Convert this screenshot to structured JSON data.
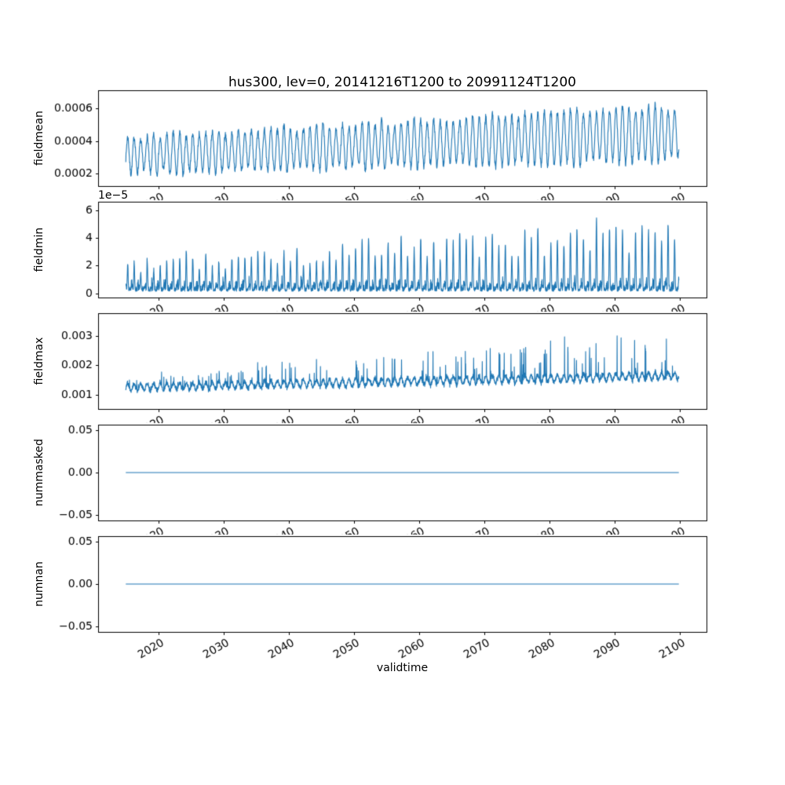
{
  "figure": {
    "title": "hus300, lev=0, 20141216T1200 to 20991124T1200",
    "xlabel": "validtime",
    "line_color": "#1f77b4",
    "axis_color": "#000000",
    "background_color": "#ffffff",
    "x_range": [
      2014.96,
      2099.9
    ],
    "xlim": [
      2010.71,
      2104.15
    ],
    "xticks": [
      {
        "v": 2020,
        "label": "2020"
      },
      {
        "v": 2030,
        "label": "2030"
      },
      {
        "v": 2040,
        "label": "2040"
      },
      {
        "v": 2050,
        "label": "2050"
      },
      {
        "v": 2060,
        "label": "2060"
      },
      {
        "v": 2070,
        "label": "2070"
      },
      {
        "v": 2080,
        "label": "2080"
      },
      {
        "v": 2090,
        "label": "2090"
      },
      {
        "v": 2100,
        "label": "2100"
      }
    ],
    "xtick_rotation_deg": 30
  },
  "chart_data": [
    {
      "type": "line",
      "ylabel": "fieldmean",
      "ylim": [
        0.000125,
        0.00071
      ],
      "yticks": [
        {
          "v": 0.0002,
          "label": "0.0002"
        },
        {
          "v": 0.0004,
          "label": "0.0004"
        },
        {
          "v": 0.0006,
          "label": "0.0006"
        }
      ],
      "signal": {
        "kind": "seasonal",
        "points": 2300,
        "low_start": 0.00019,
        "low_end": 0.00026,
        "high_start": 0.00043,
        "high_end": 0.00064,
        "noise": 2e-05,
        "seed": 7
      }
    },
    {
      "type": "line",
      "ylabel": "fieldmin",
      "offset_text": "1e−5",
      "ylim": [
        -3e-06,
        6.6e-05
      ],
      "yticks": [
        {
          "v": 0,
          "label": "0"
        },
        {
          "v": 2e-05,
          "label": "2"
        },
        {
          "v": 4e-05,
          "label": "4"
        },
        {
          "v": 6e-05,
          "label": "6"
        }
      ],
      "signal": {
        "kind": "spikes",
        "points": 3200,
        "base": 1.5e-06,
        "mid": 8e-06,
        "peak_start": 2.2e-05,
        "peak_end": 5e-05,
        "noise": 5e-06,
        "exponent": 6,
        "seed": 11
      }
    },
    {
      "type": "line",
      "ylabel": "fieldmax",
      "ylim": [
        0.00052,
        0.00377
      ],
      "yticks": [
        {
          "v": 0.001,
          "label": "0.001"
        },
        {
          "v": 0.002,
          "label": "0.002"
        },
        {
          "v": 0.003,
          "label": "0.003"
        }
      ],
      "signal": {
        "kind": "noisy-spikes",
        "points": 3200,
        "base_start": 0.00125,
        "base_end": 0.00165,
        "noise": 0.00013,
        "season": 0.00012,
        "spike_start": 0.0004,
        "spike_end": 0.0015,
        "spike_prob": 0.05,
        "seed": 23
      }
    },
    {
      "type": "line",
      "ylabel": "nummasked",
      "ylim": [
        -0.0567,
        0.0567
      ],
      "yticks": [
        {
          "v": -0.05,
          "label": "−0.05"
        },
        {
          "v": 0,
          "label": "0.00"
        },
        {
          "v": 0.05,
          "label": "0.05"
        }
      ],
      "signal": {
        "kind": "constant",
        "points": 200,
        "value": 0,
        "seed": 1
      }
    },
    {
      "type": "line",
      "ylabel": "numnan",
      "ylim": [
        -0.0567,
        0.0567
      ],
      "yticks": [
        {
          "v": -0.05,
          "label": "−0.05"
        },
        {
          "v": 0,
          "label": "0.00"
        },
        {
          "v": 0.05,
          "label": "0.05"
        }
      ],
      "signal": {
        "kind": "constant",
        "points": 200,
        "value": 0,
        "seed": 2
      }
    }
  ]
}
